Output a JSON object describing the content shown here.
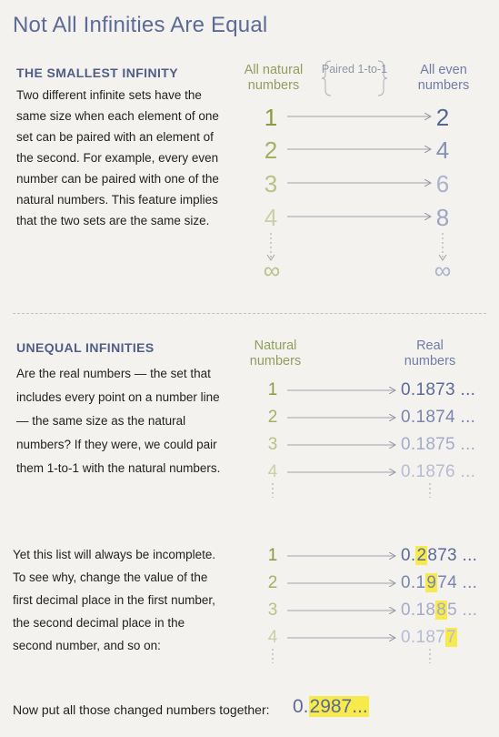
{
  "title": "Not All Infinities Are Equal",
  "section1": {
    "heading": "THE SMALLEST INFINITY",
    "paragraph": "Two different infinite sets have the same size when each element of one set can be paired with an element of the second. For example, every even number can be paired with one of the natural numbers. This feature implies that the two sets are the same size.",
    "left_header": "All natural numbers",
    "middle_label": "Paired 1-to-1",
    "right_header": "All even numbers",
    "naturals": [
      "1",
      "2",
      "3",
      "4"
    ],
    "evens": [
      "2",
      "4",
      "6",
      "8"
    ],
    "infinity": "∞"
  },
  "section2": {
    "heading": "UNEQUAL INFINITIES",
    "paragraph": "Are the real numbers — the set that includes every point on a number line — the same size as the natural numbers? If they were, we could pair them 1-to-1 with the natural numbers.",
    "left_header": "Natural numbers",
    "right_header": "Real numbers",
    "naturals": [
      "1",
      "2",
      "3",
      "4"
    ],
    "reals": [
      "0.1873 ...",
      "0.1874 ...",
      "0.1875 ...",
      "0.1876 ..."
    ]
  },
  "section3": {
    "paragraph": "Yet this list will always be incomplete. To see why, change the value of the first decimal place in the first number, the second decimal place in the second number, and so on:",
    "naturals": [
      "1",
      "2",
      "3",
      "4"
    ],
    "changed": [
      {
        "pre": "0.",
        "digit": "2",
        "post": "873 ..."
      },
      {
        "pre": "0.1",
        "digit": "9",
        "post": "74 ..."
      },
      {
        "pre": "0.18",
        "digit": "8",
        "post": "5 ..."
      },
      {
        "pre": "0.187",
        "digit": "7",
        "post": ""
      }
    ],
    "final_text": "Now put all those changed numbers together:",
    "final_pre": "0.",
    "final_highlight": "2987..."
  },
  "colors": {
    "title": "#5c6b96",
    "natural_green": "#8a9a3f",
    "real_blue": "#5b6996",
    "highlight": "#f6ea4d"
  }
}
